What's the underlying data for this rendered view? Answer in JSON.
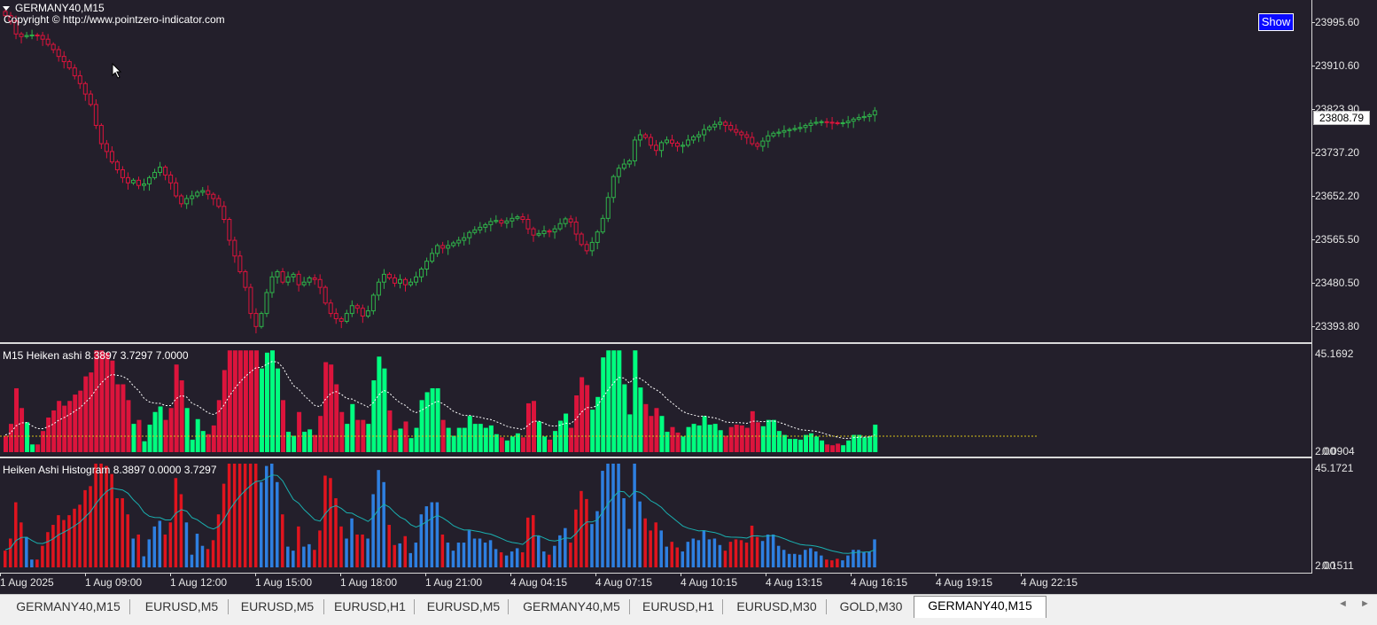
{
  "chart": {
    "symbol_title": "GERMANY40,M15",
    "copyright": "Copyright © http://www.pointzero-indicator.com",
    "show_button": "Show",
    "current_price": "23808.79",
    "price_ticks": [
      "23995.60",
      "23910.60",
      "23823.90",
      "23737.20",
      "23652.20",
      "23565.50",
      "23480.50",
      "23393.80"
    ],
    "price_range": [
      23365,
      24020
    ],
    "colors": {
      "bull": "#2fb34a",
      "bear": "#dc143c",
      "background": "#231f2b"
    }
  },
  "indicator1": {
    "label": "M15 Heiken ashi  8.3897 3.7297 7.0000",
    "scale_top": "45.1692",
    "scale_bottom": "0.0904",
    "scale_bottom_overlap": "2.00",
    "colors": {
      "up": "#00ff7f",
      "down": "#dc143c"
    }
  },
  "indicator2": {
    "label": "Heiken Ashi Histogram 8.3897 0.0000 3.7297",
    "scale_top": "45.1721",
    "scale_bottom": "0.1511",
    "scale_bottom_overlap": "2.00",
    "colors": {
      "up": "#2e7fe0",
      "down": "#e0141e",
      "signal": "#1ab0b0"
    }
  },
  "time_axis": [
    "1 Aug 2025",
    "1 Aug 09:00",
    "1 Aug 12:00",
    "1 Aug 15:00",
    "1 Aug 18:00",
    "1 Aug 21:00",
    "4 Aug 04:15",
    "4 Aug 07:15",
    "4 Aug 10:15",
    "4 Aug 13:15",
    "4 Aug 16:15",
    "4 Aug 19:15",
    "4 Aug 22:15"
  ],
  "tabs": [
    "GERMANY40,M15",
    "EURUSD,M5",
    "EURUSD,M5",
    "EURUSD,H1",
    "EURUSD,M5",
    "GERMANY40,M5",
    "EURUSD,H1",
    "EURUSD,M30",
    "GOLD,M30",
    "GERMANY40,M15"
  ],
  "active_tab_index": 9,
  "nav": {
    "prev": "◄",
    "next": "►"
  },
  "candles_close": [
    23990,
    23980,
    23955,
    23950,
    23952,
    23953,
    23952,
    23945,
    23935,
    23925,
    23912,
    23902,
    23890,
    23875,
    23860,
    23840,
    23820,
    23780,
    23745,
    23730,
    23710,
    23695,
    23680,
    23670,
    23675,
    23665,
    23668,
    23680,
    23690,
    23700,
    23685,
    23670,
    23645,
    23630,
    23640,
    23645,
    23652,
    23655,
    23648,
    23640,
    23625,
    23600,
    23560,
    23530,
    23500,
    23470,
    23420,
    23395,
    23420,
    23460,
    23490,
    23500,
    23480,
    23490,
    23495,
    23475,
    23480,
    23488,
    23485,
    23470,
    23440,
    23420,
    23410,
    23405,
    23420,
    23435,
    23430,
    23415,
    23425,
    23455,
    23480,
    23495,
    23488,
    23478,
    23485,
    23475,
    23480,
    23490,
    23505,
    23520,
    23535,
    23550,
    23545,
    23550,
    23555,
    23560,
    23565,
    23575,
    23580,
    23585,
    23590,
    23596,
    23598,
    23593,
    23597,
    23602,
    23605,
    23600,
    23582,
    23570,
    23573,
    23578,
    23576,
    23582,
    23592,
    23601,
    23595,
    23572,
    23552,
    23540,
    23556,
    23576,
    23602,
    23642,
    23682,
    23698,
    23706,
    23712,
    23752,
    23762,
    23757,
    23742,
    23732,
    23747,
    23752,
    23746,
    23740,
    23742,
    23752,
    23758,
    23762,
    23772,
    23777,
    23782,
    23786,
    23780,
    23772,
    23767,
    23762,
    23757,
    23745,
    23740,
    23750,
    23760,
    23765,
    23767,
    23770,
    23772,
    23774,
    23776,
    23780,
    23784,
    23786,
    23787,
    23786,
    23785,
    23784,
    23785,
    23788,
    23792,
    23795,
    23797,
    23800,
    23808
  ]
}
